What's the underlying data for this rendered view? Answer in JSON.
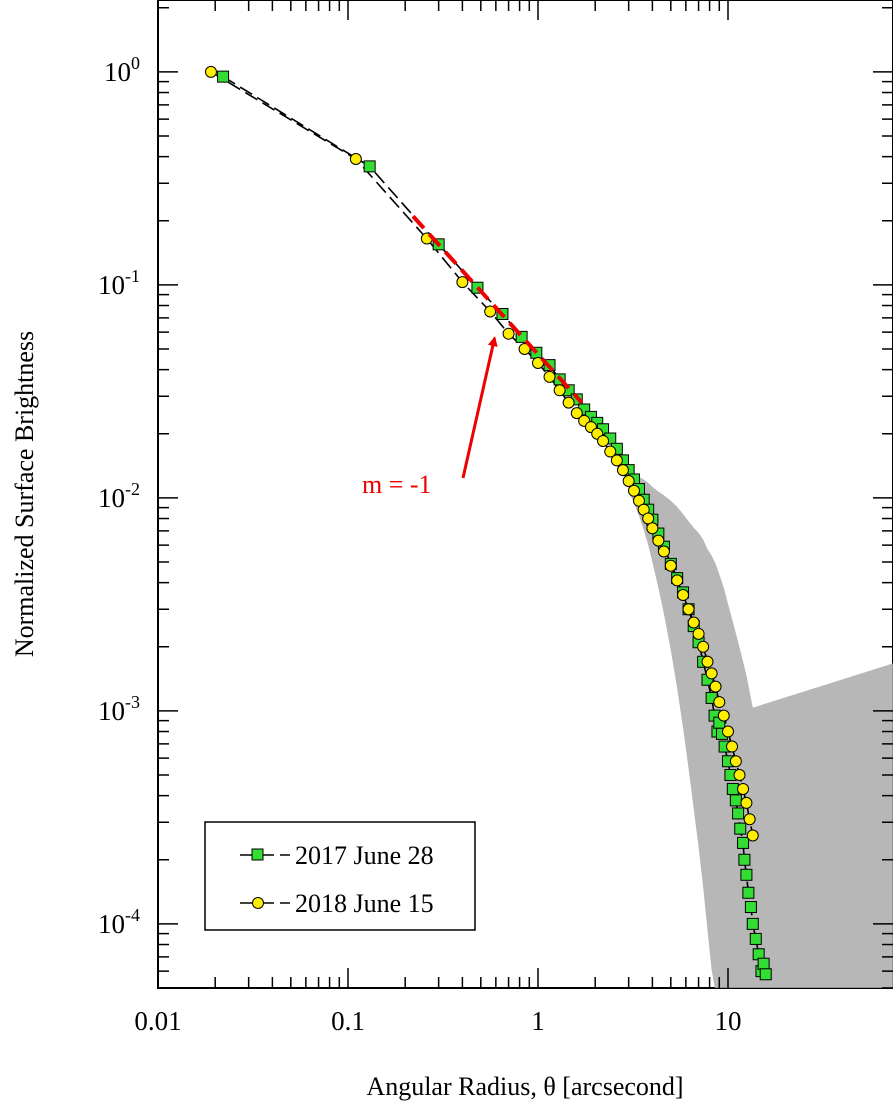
{
  "chart_data": {
    "type": "line",
    "xlabel": "Angular Radius, θ [arcsecond]",
    "ylabel": "Normalized Surface Brightness",
    "x_scale": "log",
    "y_scale": "log",
    "xlim": [
      0.01,
      18
    ],
    "ylim": [
      5e-05,
      2.1
    ],
    "grid": false,
    "legend_position": "bottom-left",
    "x_ticks": [
      {
        "value": 0.01,
        "label": "0.01"
      },
      {
        "value": 0.1,
        "label": "0.1"
      },
      {
        "value": 1,
        "label": "1"
      },
      {
        "value": 10,
        "label": "10"
      }
    ],
    "y_ticks": [
      {
        "value": 1,
        "base": "10",
        "exp": "0"
      },
      {
        "value": 0.1,
        "base": "10",
        "exp": "-1"
      },
      {
        "value": 0.01,
        "base": "10",
        "exp": "-2"
      },
      {
        "value": 0.001,
        "base": "10",
        "exp": "-3"
      },
      {
        "value": 0.0001,
        "base": "10",
        "exp": "-4"
      }
    ],
    "colors": {
      "series_2017": "#33dd33",
      "series_2018": "#ffee00",
      "uncertainty_band": "#aaaaaa",
      "fit_line": "#ee0000",
      "annotation": "#ee0000"
    },
    "series": [
      {
        "name": "2017 June 28",
        "marker": "square",
        "x": [
          0.022,
          0.13,
          0.3,
          0.48,
          0.65,
          0.82,
          0.98,
          1.15,
          1.3,
          1.45,
          1.6,
          1.75,
          1.9,
          2.05,
          2.2,
          2.4,
          2.6,
          2.8,
          3.0,
          3.2,
          3.4,
          3.6,
          3.8,
          4.0,
          4.3,
          4.6,
          5.0,
          5.4,
          5.8,
          6.2,
          6.6,
          7.0,
          7.4,
          7.8,
          8.2,
          8.5,
          8.8,
          9.0,
          9.3,
          9.6,
          10.0,
          10.3,
          10.6,
          11.0,
          11.3,
          11.6,
          12.0,
          12.2,
          12.5,
          12.8,
          13.2,
          13.5,
          14.0,
          14.5,
          15.0,
          15.4,
          15.8
        ],
        "y": [
          0.95,
          0.36,
          0.155,
          0.097,
          0.073,
          0.057,
          0.048,
          0.042,
          0.036,
          0.032,
          0.029,
          0.026,
          0.024,
          0.0225,
          0.021,
          0.019,
          0.017,
          0.015,
          0.0135,
          0.0122,
          0.011,
          0.0098,
          0.0088,
          0.0079,
          0.0068,
          0.0059,
          0.0049,
          0.0042,
          0.0036,
          0.003,
          0.0025,
          0.0021,
          0.0017,
          0.0014,
          0.00115,
          0.00095,
          0.0008,
          0.00088,
          0.00078,
          0.00068,
          0.00058,
          0.0005,
          0.00043,
          0.00038,
          0.00033,
          0.00028,
          0.00024,
          0.0002,
          0.00017,
          0.00014,
          0.00012,
          0.0001,
          8.5e-05,
          7.2e-05,
          6e-05,
          6.5e-05,
          5.8e-05
        ]
      },
      {
        "name": "2018 June 15",
        "marker": "circle",
        "x": [
          0.019,
          0.11,
          0.26,
          0.4,
          0.56,
          0.7,
          0.85,
          1.0,
          1.15,
          1.3,
          1.45,
          1.6,
          1.75,
          1.9,
          2.05,
          2.2,
          2.4,
          2.6,
          2.8,
          3.0,
          3.2,
          3.4,
          3.6,
          3.8,
          4.0,
          4.3,
          4.6,
          5.0,
          5.4,
          5.8,
          6.2,
          6.6,
          7.0,
          7.4,
          7.8,
          8.2,
          8.6,
          9.0,
          9.5,
          10.0,
          10.5,
          11.0,
          11.5,
          12.0,
          12.5,
          13.0,
          13.5
        ],
        "y": [
          1.0,
          0.39,
          0.165,
          0.103,
          0.075,
          0.059,
          0.05,
          0.043,
          0.037,
          0.032,
          0.028,
          0.025,
          0.023,
          0.0215,
          0.02,
          0.0185,
          0.0165,
          0.015,
          0.0135,
          0.012,
          0.0108,
          0.0097,
          0.0088,
          0.008,
          0.0072,
          0.0063,
          0.0056,
          0.0048,
          0.0041,
          0.0035,
          0.003,
          0.0026,
          0.0023,
          0.002,
          0.0017,
          0.0015,
          0.0013,
          0.0011,
          0.00095,
          0.0008,
          0.00068,
          0.00058,
          0.0005,
          0.00043,
          0.00037,
          0.00031,
          0.00026
        ]
      }
    ],
    "fit_line": {
      "label": "m = -1",
      "x": [
        0.22,
        1.7
      ],
      "y": [
        0.21,
        0.028
      ]
    },
    "annotation": {
      "text": "m = -1",
      "points_to": {
        "x": 0.62,
        "y": 0.06
      }
    }
  }
}
